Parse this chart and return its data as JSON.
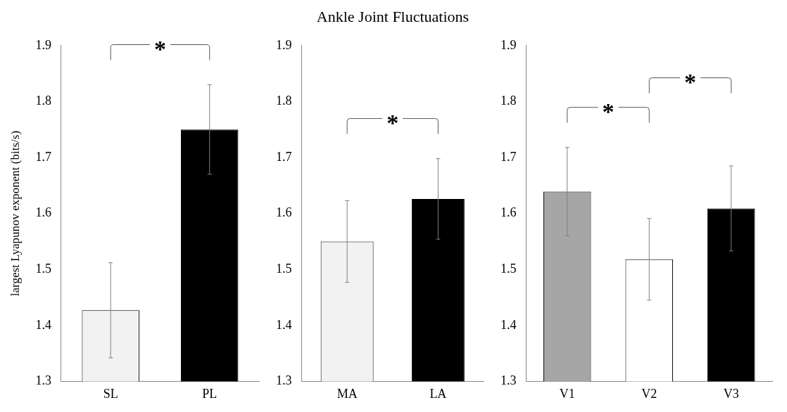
{
  "chart_data": [
    {
      "type": "bar",
      "ylabel": "largest Lyapunov exponent (bits/s)",
      "categories": [
        "SL",
        "PL"
      ],
      "values": [
        1.427,
        1.75
      ],
      "colors": [
        "#f2f2f2",
        "#000000"
      ],
      "errors": [
        0.085,
        0.08
      ],
      "ylim": [
        1.3,
        1.9
      ],
      "yticks": [
        1.3,
        1.4,
        1.5,
        1.6,
        1.7,
        1.8,
        1.9
      ],
      "grid": false,
      "annotations": [
        "*"
      ]
    },
    {
      "type": "bar",
      "title": "Ankle Joint Fluctuations",
      "categories": [
        "MA",
        "LA"
      ],
      "values": [
        1.55,
        1.626
      ],
      "colors": [
        "#f2f2f2",
        "#000000"
      ],
      "errors": [
        0.073,
        0.072
      ],
      "ylim": [
        1.3,
        1.9
      ],
      "yticks": [
        1.3,
        1.4,
        1.5,
        1.6,
        1.7,
        1.8,
        1.9
      ],
      "grid": false,
      "annotations": [
        "*"
      ]
    },
    {
      "type": "bar",
      "categories": [
        "V1",
        "V2",
        "V3"
      ],
      "values": [
        1.639,
        1.518,
        1.609
      ],
      "colors": [
        "#a6a6a6",
        "#ffffff",
        "#000000"
      ],
      "errors": [
        0.079,
        0.073,
        0.076
      ],
      "ylim": [
        1.3,
        1.9
      ],
      "yticks": [
        1.3,
        1.4,
        1.5,
        1.6,
        1.7,
        1.8,
        1.9
      ],
      "grid": false,
      "annotations": [
        "*",
        "*"
      ]
    }
  ]
}
